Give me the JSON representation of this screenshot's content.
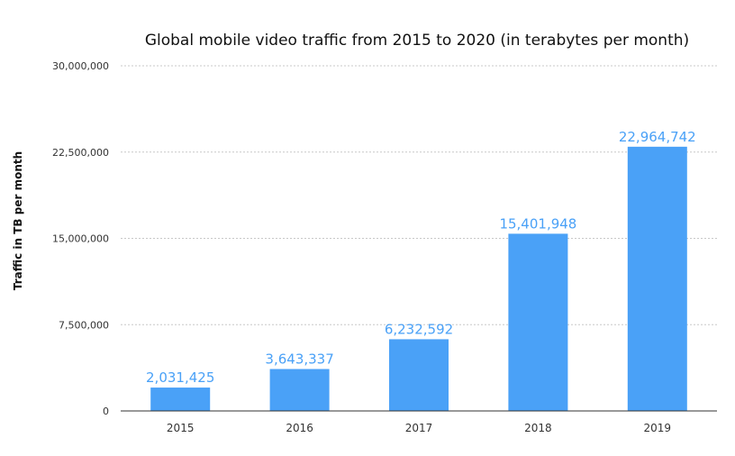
{
  "chart_data": {
    "type": "bar",
    "title": "Global mobile video traffic from 2015 to 2020 (in terabytes per month)",
    "xlabel": "",
    "ylabel": "Traffic in TB per month",
    "categories": [
      "2015",
      "2016",
      "2017",
      "2018",
      "2019"
    ],
    "values": [
      2031425,
      3643337,
      6232592,
      15401948,
      22964742
    ],
    "value_labels": [
      "2,031,425",
      "3,643,337",
      "6,232,592",
      "15,401,948",
      "22,964,742"
    ],
    "ylim": [
      0,
      30000000
    ],
    "y_ticks": [
      0,
      7500000,
      15000000,
      22500000,
      30000000
    ],
    "y_tick_labels": [
      "0",
      "7,500,000",
      "15,000,000",
      "22,500,000",
      "30,000,000"
    ],
    "grid": true,
    "legend": "none",
    "colors": {
      "bar": "#4aa1f7",
      "label": "#4aa1f7",
      "grid": "#c8c8c8",
      "axis": "#333333"
    }
  }
}
